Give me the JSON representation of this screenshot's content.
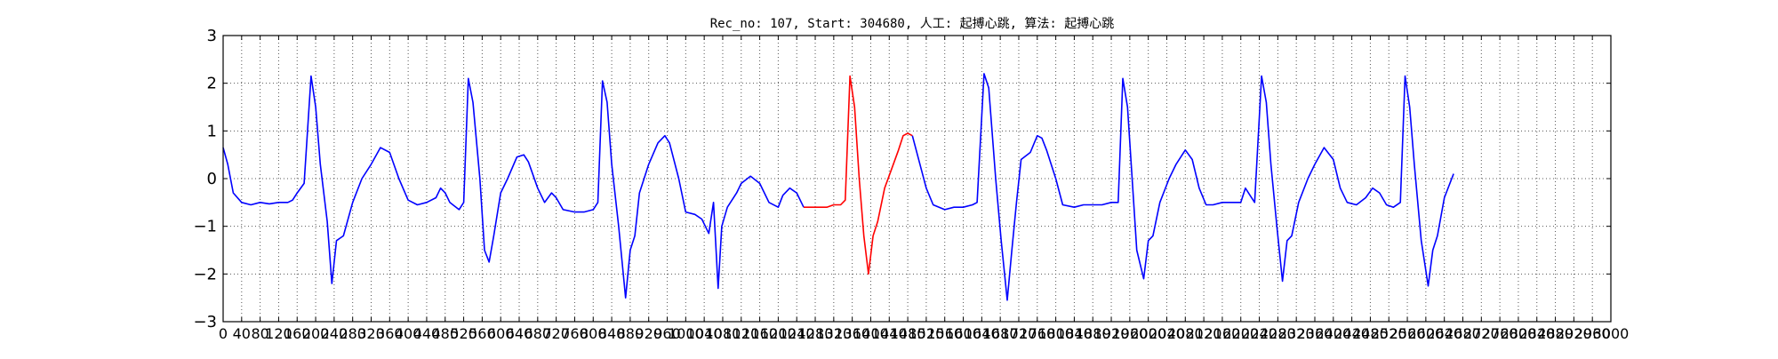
{
  "chart_data": {
    "type": "line",
    "title": "Rec_no: 107, Start: 304680, 人工: 起搏心跳, 算法: 起搏心跳",
    "xlabel": "",
    "ylabel": "",
    "xlim": [
      0,
      3000
    ],
    "ylim": [
      -3,
      3
    ],
    "grid": true,
    "y_ticks": [
      3,
      2,
      1,
      0,
      -1,
      -2,
      -3
    ],
    "y_tick_labels": [
      "3",
      "2",
      "1",
      "0",
      "−1",
      "−2",
      "−3"
    ],
    "x_ticks": [
      0,
      40,
      80,
      120,
      160,
      200,
      240,
      280,
      320,
      360,
      400,
      440,
      480,
      520,
      560,
      600,
      640,
      680,
      720,
      760,
      800,
      840,
      880,
      920,
      960,
      1000,
      1040,
      1080,
      1120,
      1160,
      1200,
      1240,
      1280,
      1320,
      1360,
      1400,
      1440,
      1480,
      1520,
      1560,
      1600,
      1640,
      1680,
      1720,
      1760,
      1800,
      1840,
      1880,
      1920,
      1960,
      2000,
      2040,
      2080,
      2120,
      2160,
      2200,
      2240,
      2280,
      2320,
      2360,
      2400,
      2440,
      2480,
      2520,
      2560,
      2600,
      2640,
      2680,
      2720,
      2760,
      2800,
      2840,
      2880,
      2920,
      2960,
      3000
    ],
    "x_tick_labels": [
      "0",
      "40",
      "80",
      "120",
      "160",
      "200",
      "240",
      "280",
      "320",
      "360",
      "400",
      "440",
      "480",
      "520",
      "560",
      "600",
      "640",
      "680",
      "720",
      "760",
      "800",
      "840",
      "880",
      "920",
      "960",
      "1000",
      "1040",
      "1080",
      "1120",
      "1160",
      "1200",
      "1240",
      "1280",
      "1320",
      "1360",
      "1400",
      "1440",
      "1480",
      "1520",
      "1560",
      "1600",
      "1640",
      "1680",
      "1720",
      "1760",
      "1800",
      "1840",
      "1880",
      "1920",
      "1960",
      "2000",
      "2040",
      "2080",
      "2120",
      "2160",
      "2200",
      "2240",
      "2280",
      "2320",
      "2360",
      "2400",
      "2440",
      "2480",
      "2520",
      "2560",
      "2600",
      "2640",
      "2680",
      "2720",
      "2760",
      "2800",
      "2840",
      "2880",
      "2920",
      "2960",
      "3000"
    ],
    "series": [
      {
        "color": "#0000ff",
        "points": [
          [
            0,
            0.65
          ],
          [
            10,
            0.3
          ],
          [
            22,
            -0.3
          ],
          [
            40,
            -0.5
          ],
          [
            60,
            -0.55
          ],
          [
            80,
            -0.5
          ],
          [
            100,
            -0.53
          ],
          [
            120,
            -0.5
          ],
          [
            140,
            -0.5
          ],
          [
            150,
            -0.45
          ],
          [
            160,
            -0.3
          ],
          [
            175,
            -0.1
          ],
          [
            190,
            2.15
          ],
          [
            200,
            1.5
          ],
          [
            210,
            0.3
          ],
          [
            225,
            -0.9
          ],
          [
            235,
            -2.2
          ],
          [
            245,
            -1.3
          ],
          [
            260,
            -1.2
          ],
          [
            280,
            -0.5
          ],
          [
            300,
            0.0
          ],
          [
            320,
            0.3
          ],
          [
            340,
            0.65
          ],
          [
            360,
            0.55
          ],
          [
            380,
            0.0
          ],
          [
            400,
            -0.45
          ],
          [
            420,
            -0.55
          ],
          [
            440,
            -0.5
          ],
          [
            460,
            -0.4
          ],
          [
            470,
            -0.2
          ],
          [
            480,
            -0.3
          ],
          [
            490,
            -0.5
          ],
          [
            510,
            -0.65
          ],
          [
            520,
            -0.5
          ],
          [
            530,
            2.1
          ],
          [
            540,
            1.6
          ],
          [
            555,
            0.0
          ],
          [
            565,
            -1.5
          ],
          [
            575,
            -1.75
          ],
          [
            585,
            -1.2
          ],
          [
            600,
            -0.3
          ],
          [
            615,
            0.0
          ],
          [
            635,
            0.45
          ],
          [
            650,
            0.5
          ],
          [
            660,
            0.35
          ],
          [
            680,
            -0.2
          ],
          [
            695,
            -0.5
          ],
          [
            710,
            -0.3
          ],
          [
            720,
            -0.4
          ],
          [
            735,
            -0.65
          ],
          [
            760,
            -0.7
          ],
          [
            780,
            -0.7
          ],
          [
            800,
            -0.65
          ],
          [
            810,
            -0.5
          ],
          [
            820,
            2.05
          ],
          [
            830,
            1.6
          ],
          [
            840,
            0.3
          ],
          [
            855,
            -1.0
          ],
          [
            870,
            -2.5
          ],
          [
            880,
            -1.5
          ],
          [
            890,
            -1.2
          ],
          [
            900,
            -0.3
          ],
          [
            920,
            0.3
          ],
          [
            940,
            0.75
          ],
          [
            955,
            0.9
          ],
          [
            965,
            0.75
          ],
          [
            985,
            0.0
          ],
          [
            1000,
            -0.7
          ],
          [
            1020,
            -0.75
          ],
          [
            1035,
            -0.85
          ],
          [
            1050,
            -1.15
          ],
          [
            1060,
            -0.5
          ],
          [
            1070,
            -2.3
          ],
          [
            1078,
            -1.0
          ],
          [
            1090,
            -0.6
          ],
          [
            1110,
            -0.3
          ],
          [
            1120,
            -0.1
          ],
          [
            1140,
            0.05
          ],
          [
            1160,
            -0.1
          ],
          [
            1180,
            -0.5
          ],
          [
            1200,
            -0.6
          ],
          [
            1210,
            -0.35
          ],
          [
            1225,
            -0.2
          ],
          [
            1240,
            -0.3
          ],
          [
            1255,
            -0.6
          ]
        ]
      },
      {
        "color": "#ff0000",
        "points": [
          [
            1255,
            -0.6
          ],
          [
            1280,
            -0.6
          ],
          [
            1305,
            -0.6
          ],
          [
            1320,
            -0.55
          ],
          [
            1335,
            -0.55
          ],
          [
            1345,
            -0.45
          ],
          [
            1355,
            2.15
          ],
          [
            1365,
            1.5
          ],
          [
            1375,
            0.0
          ],
          [
            1385,
            -1.2
          ],
          [
            1395,
            -2.0
          ],
          [
            1405,
            -1.2
          ],
          [
            1415,
            -0.9
          ],
          [
            1430,
            -0.2
          ],
          [
            1445,
            0.2
          ],
          [
            1460,
            0.6
          ],
          [
            1470,
            0.9
          ],
          [
            1480,
            0.95
          ],
          [
            1490,
            0.9
          ]
        ]
      },
      {
        "color": "#0000ff",
        "points": [
          [
            1490,
            0.9
          ],
          [
            1505,
            0.35
          ],
          [
            1520,
            -0.2
          ],
          [
            1535,
            -0.55
          ],
          [
            1560,
            -0.65
          ],
          [
            1580,
            -0.6
          ],
          [
            1600,
            -0.6
          ],
          [
            1620,
            -0.55
          ],
          [
            1630,
            -0.5
          ],
          [
            1645,
            2.2
          ],
          [
            1655,
            1.9
          ],
          [
            1670,
            0.0
          ],
          [
            1682,
            -1.3
          ],
          [
            1695,
            -2.55
          ],
          [
            1705,
            -1.5
          ],
          [
            1715,
            -0.5
          ],
          [
            1725,
            0.4
          ],
          [
            1745,
            0.55
          ],
          [
            1760,
            0.9
          ],
          [
            1770,
            0.85
          ],
          [
            1780,
            0.6
          ],
          [
            1800,
            0.0
          ],
          [
            1815,
            -0.55
          ],
          [
            1840,
            -0.6
          ],
          [
            1860,
            -0.55
          ],
          [
            1880,
            -0.55
          ],
          [
            1900,
            -0.55
          ],
          [
            1920,
            -0.5
          ],
          [
            1935,
            -0.5
          ],
          [
            1945,
            2.1
          ],
          [
            1955,
            1.5
          ],
          [
            1965,
            0.0
          ],
          [
            1975,
            -1.5
          ],
          [
            1990,
            -2.1
          ],
          [
            2000,
            -1.3
          ],
          [
            2010,
            -1.2
          ],
          [
            2025,
            -0.5
          ],
          [
            2045,
            0.0
          ],
          [
            2060,
            0.3
          ],
          [
            2080,
            0.6
          ],
          [
            2095,
            0.4
          ],
          [
            2110,
            -0.2
          ],
          [
            2125,
            -0.55
          ],
          [
            2140,
            -0.55
          ],
          [
            2160,
            -0.5
          ],
          [
            2180,
            -0.5
          ],
          [
            2200,
            -0.5
          ],
          [
            2210,
            -0.2
          ],
          [
            2220,
            -0.35
          ],
          [
            2230,
            -0.5
          ],
          [
            2245,
            2.15
          ],
          [
            2255,
            1.6
          ],
          [
            2265,
            0.3
          ],
          [
            2278,
            -1.0
          ],
          [
            2290,
            -2.15
          ],
          [
            2300,
            -1.3
          ],
          [
            2310,
            -1.2
          ],
          [
            2325,
            -0.5
          ],
          [
            2345,
            0.0
          ],
          [
            2360,
            0.3
          ],
          [
            2380,
            0.65
          ],
          [
            2400,
            0.4
          ],
          [
            2415,
            -0.2
          ],
          [
            2430,
            -0.5
          ],
          [
            2450,
            -0.55
          ],
          [
            2470,
            -0.4
          ],
          [
            2485,
            -0.2
          ],
          [
            2500,
            -0.3
          ],
          [
            2515,
            -0.55
          ],
          [
            2530,
            -0.6
          ],
          [
            2545,
            -0.5
          ],
          [
            2555,
            2.15
          ],
          [
            2565,
            1.5
          ],
          [
            2575,
            0.3
          ],
          [
            2590,
            -1.3
          ],
          [
            2605,
            -2.25
          ],
          [
            2615,
            -1.5
          ],
          [
            2625,
            -1.2
          ],
          [
            2640,
            -0.4
          ],
          [
            2660,
            0.1
          ]
        ]
      }
    ]
  }
}
